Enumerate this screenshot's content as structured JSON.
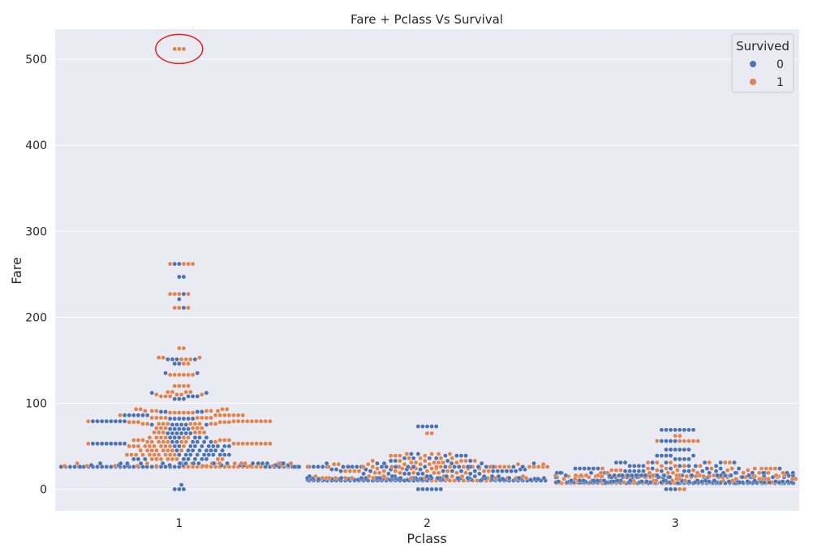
{
  "chart_data": {
    "type": "scatter",
    "subtype": "swarm",
    "title": "Fare + Pclass Vs Survival",
    "xlabel": "Pclass",
    "ylabel": "Fare",
    "categories": [
      "1",
      "2",
      "3"
    ],
    "ylim": [
      -25,
      535
    ],
    "yticks": [
      0,
      100,
      200,
      300,
      400,
      500
    ],
    "grid": true,
    "legend": {
      "title": "Survived",
      "placement": "top-right",
      "entries": [
        "0",
        "1"
      ]
    },
    "colors": {
      "0": "#4c72b0",
      "1": "#dd8452",
      "background": "#eaeaf2",
      "grid": "#ffffff",
      "annotation": "#e02020"
    },
    "annotation": {
      "shape": "ellipse",
      "target": "Pclass 1 outliers near Fare 512"
    },
    "series": [
      {
        "name": "0",
        "points": [
          [
            "1",
            0,
            3
          ],
          [
            "1",
            5,
            1
          ],
          [
            "1",
            26,
            40
          ],
          [
            "1",
            28,
            12
          ],
          [
            "1",
            30,
            20
          ],
          [
            "1",
            35,
            8
          ],
          [
            "1",
            40,
            10
          ],
          [
            "1",
            45,
            8
          ],
          [
            "1",
            50,
            10
          ],
          [
            "1",
            53,
            8
          ],
          [
            "1",
            55,
            6
          ],
          [
            "1",
            60,
            6
          ],
          [
            "1",
            65,
            6
          ],
          [
            "1",
            70,
            5
          ],
          [
            "1",
            75,
            6
          ],
          [
            "1",
            79,
            8
          ],
          [
            "1",
            82,
            6
          ],
          [
            "1",
            86,
            6
          ],
          [
            "1",
            90,
            4
          ],
          [
            "1",
            105,
            3
          ],
          [
            "1",
            108,
            3
          ],
          [
            "1",
            112,
            2
          ],
          [
            "1",
            135,
            2
          ],
          [
            "1",
            146,
            2
          ],
          [
            "1",
            151,
            4
          ],
          [
            "1",
            211,
            1
          ],
          [
            "1",
            221,
            1
          ],
          [
            "1",
            227,
            1
          ],
          [
            "1",
            247,
            2
          ],
          [
            "1",
            262,
            2
          ],
          [
            "2",
            0,
            6
          ],
          [
            "2",
            10,
            40
          ],
          [
            "2",
            11,
            45
          ],
          [
            "2",
            12,
            30
          ],
          [
            "2",
            13,
            35
          ],
          [
            "2",
            15,
            10
          ],
          [
            "2",
            18,
            8
          ],
          [
            "2",
            21,
            12
          ],
          [
            "2",
            23,
            8
          ],
          [
            "2",
            26,
            30
          ],
          [
            "2",
            30,
            6
          ],
          [
            "2",
            33,
            4
          ],
          [
            "2",
            36,
            4
          ],
          [
            "2",
            39,
            4
          ],
          [
            "2",
            41,
            2
          ],
          [
            "2",
            73,
            5
          ],
          [
            "3",
            0,
            3
          ],
          [
            "3",
            7,
            45
          ],
          [
            "3",
            8,
            70
          ],
          [
            "3",
            9,
            25
          ],
          [
            "3",
            10,
            20
          ],
          [
            "3",
            14,
            25
          ],
          [
            "3",
            16,
            30
          ],
          [
            "3",
            19,
            15
          ],
          [
            "3",
            21,
            10
          ],
          [
            "3",
            24,
            12
          ],
          [
            "3",
            27,
            8
          ],
          [
            "3",
            31,
            8
          ],
          [
            "3",
            35,
            4
          ],
          [
            "3",
            39,
            5
          ],
          [
            "3",
            46,
            6
          ],
          [
            "3",
            56,
            4
          ],
          [
            "3",
            69,
            8
          ]
        ]
      },
      {
        "name": "1",
        "points": [
          [
            "1",
            26,
            18
          ],
          [
            "1",
            27,
            12
          ],
          [
            "1",
            30,
            14
          ],
          [
            "1",
            35,
            8
          ],
          [
            "1",
            40,
            10
          ],
          [
            "1",
            45,
            8
          ],
          [
            "1",
            50,
            10
          ],
          [
            "1",
            53,
            10
          ],
          [
            "1",
            55,
            8
          ],
          [
            "1",
            57,
            6
          ],
          [
            "1",
            60,
            6
          ],
          [
            "1",
            66,
            6
          ],
          [
            "1",
            71,
            6
          ],
          [
            "1",
            76,
            10
          ],
          [
            "1",
            78,
            6
          ],
          [
            "1",
            79,
            10
          ],
          [
            "1",
            83,
            8
          ],
          [
            "1",
            86,
            8
          ],
          [
            "1",
            89,
            6
          ],
          [
            "1",
            91,
            6
          ],
          [
            "1",
            93,
            4
          ],
          [
            "1",
            108,
            3
          ],
          [
            "1",
            110,
            4
          ],
          [
            "1",
            113,
            4
          ],
          [
            "1",
            120,
            4
          ],
          [
            "1",
            133,
            6
          ],
          [
            "1",
            146,
            2
          ],
          [
            "1",
            151,
            3
          ],
          [
            "1",
            153,
            3
          ],
          [
            "1",
            164,
            2
          ],
          [
            "1",
            211,
            3
          ],
          [
            "1",
            227,
            4
          ],
          [
            "1",
            262,
            4
          ],
          [
            "1",
            512,
            3
          ],
          [
            "2",
            10,
            14
          ],
          [
            "2",
            13,
            18
          ],
          [
            "2",
            15,
            8
          ],
          [
            "2",
            19,
            8
          ],
          [
            "2",
            21,
            10
          ],
          [
            "2",
            24,
            8
          ],
          [
            "2",
            26,
            26
          ],
          [
            "2",
            29,
            8
          ],
          [
            "2",
            31,
            6
          ],
          [
            "2",
            33,
            6
          ],
          [
            "2",
            36,
            4
          ],
          [
            "2",
            39,
            4
          ],
          [
            "2",
            41,
            4
          ],
          [
            "2",
            65,
            2
          ],
          [
            "3",
            0,
            2
          ],
          [
            "3",
            7,
            30
          ],
          [
            "3",
            8,
            30
          ],
          [
            "3",
            10,
            12
          ],
          [
            "3",
            12,
            12
          ],
          [
            "3",
            14,
            12
          ],
          [
            "3",
            15,
            20
          ],
          [
            "3",
            16,
            18
          ],
          [
            "3",
            19,
            10
          ],
          [
            "3",
            22,
            8
          ],
          [
            "3",
            24,
            10
          ],
          [
            "3",
            27,
            4
          ],
          [
            "3",
            31,
            6
          ],
          [
            "3",
            56,
            6
          ],
          [
            "3",
            62,
            2
          ]
        ]
      }
    ]
  }
}
